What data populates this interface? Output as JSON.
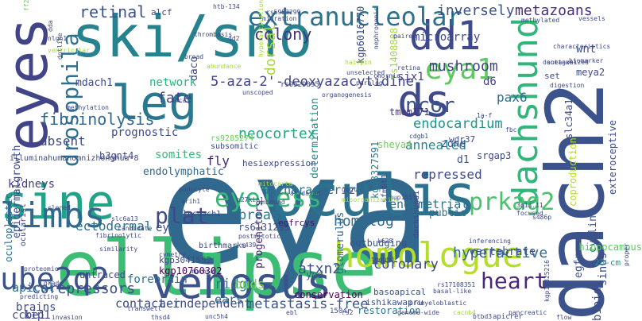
{
  "words": [
    {
      "text": "eya",
      "color": "#31688e"
    },
    {
      "text": "ellipse",
      "color": "#3dbc74"
    },
    {
      "text": "ski/sno",
      "color": "#26828e"
    },
    {
      "text": "dach2",
      "color": "#3b528b"
    },
    {
      "text": "sine",
      "color": "#20a386"
    },
    {
      "text": "oculis",
      "color": "#2c718e"
    },
    {
      "text": "venosus",
      "color": "#3b528b"
    },
    {
      "text": "eyes",
      "color": "#414487"
    },
    {
      "text": "leg",
      "color": "#2a788e"
    },
    {
      "text": "homologue",
      "color": "#b5de2b"
    },
    {
      "text": "ds",
      "color": "#3e4a89"
    },
    {
      "text": "limbs",
      "color": "#31688e"
    },
    {
      "text": "ube2q2",
      "color": "#3b528b"
    },
    {
      "text": "dachshund",
      "color": "#31b57b"
    },
    {
      "text": "dd1",
      "color": "#3e4a89"
    },
    {
      "text": "eyeless",
      "color": "#35b779"
    },
    {
      "text": "eya1",
      "color": "#5ec962"
    },
    {
      "text": "extranucleolar",
      "color": "#2c718e"
    },
    {
      "text": "5-aza-2'-deoxyazacytidine",
      "color": "#404387"
    },
    {
      "text": "ncor",
      "color": "#3b528b"
    },
    {
      "text": "endocardium",
      "color": "#21918c"
    },
    {
      "text": "prkag2",
      "color": "#4ac16d"
    },
    {
      "text": "heart",
      "color": "#482878"
    },
    {
      "text": "drosophila",
      "color": "#2d708e"
    },
    {
      "text": "mushroom",
      "color": "#414487"
    },
    {
      "text": "fibrinolysis",
      "color": "#31688e"
    },
    {
      "text": "neocortex",
      "color": "#22a884"
    },
    {
      "text": "breast",
      "color": "#2a788e"
    },
    {
      "text": "plat",
      "color": "#3e4989"
    },
    {
      "text": "homolog",
      "color": "#31688e"
    },
    {
      "text": "atxn2",
      "color": "#3b528b"
    },
    {
      "text": "metastasis-free",
      "color": "#39558c"
    },
    {
      "text": "contact-independent",
      "color": "#3e4a89"
    },
    {
      "text": "colony",
      "color": "#46337e"
    },
    {
      "text": "inversely",
      "color": "#3b528b"
    },
    {
      "text": "metazoans",
      "color": "#46307e"
    },
    {
      "text": "annealed",
      "color": "#26828e"
    },
    {
      "text": "repressed",
      "color": "#3e4989"
    },
    {
      "text": "uncharacterized",
      "color": "#2e6e8e"
    },
    {
      "text": "ectodermal",
      "color": "#2c728e"
    },
    {
      "text": "absent",
      "color": "#3e4a89"
    },
    {
      "text": "network",
      "color": "#2db27d"
    },
    {
      "text": "fate",
      "color": "#433e85"
    },
    {
      "text": "retinal",
      "color": "#3b528b"
    },
    {
      "text": "somites",
      "color": "#38b977"
    },
    {
      "text": "pax6",
      "color": "#2d708e"
    },
    {
      "text": "six1",
      "color": "#433e85"
    },
    {
      "text": "d6",
      "color": "#433e85"
    },
    {
      "text": "coronary",
      "color": "#3e4a89"
    },
    {
      "text": "hyperactive",
      "color": "#31688e"
    },
    {
      "text": "endometrial",
      "color": "#2c718e"
    },
    {
      "text": "vertebrate",
      "color": "#3b528b"
    },
    {
      "text": "corepressors",
      "color": "#3d4d8a"
    },
    {
      "text": "forebrain",
      "color": "#2d708e"
    },
    {
      "text": "apical",
      "color": "#2d708e"
    },
    {
      "text": "brains",
      "color": "#3e4a89"
    },
    {
      "text": "ccbe1",
      "color": "#3e4989"
    },
    {
      "text": "kip1",
      "color": "#404387"
    },
    {
      "text": "kidneys",
      "color": "#433e85"
    },
    {
      "text": "dorsal",
      "color": "#a5db36"
    },
    {
      "text": "microarray",
      "color": "#3e4989"
    },
    {
      "text": "prognostic",
      "color": "#3e4989"
    },
    {
      "text": "mdach1",
      "color": "#3e4a89"
    },
    {
      "text": "fly",
      "color": "#482475"
    },
    {
      "text": "daco",
      "color": "#3e4989"
    },
    {
      "text": "ridge",
      "color": "#2a788e"
    },
    {
      "text": "ears",
      "color": "#31688e"
    },
    {
      "text": "aer",
      "color": "#3b528b"
    },
    {
      "text": "buds",
      "color": "#7ad151"
    },
    {
      "text": "ey",
      "color": "#3e4989"
    },
    {
      "text": "bioid",
      "color": "#3e4989"
    },
    {
      "text": "sinus",
      "color": "#3e4989"
    },
    {
      "text": "egfr",
      "color": "#3b528b"
    },
    {
      "text": "wnt",
      "color": "#3b528b"
    },
    {
      "text": "cyclin",
      "color": "#3b528b"
    },
    {
      "text": "public",
      "color": "#2d708e"
    },
    {
      "text": "zone",
      "color": "#3b528b"
    },
    {
      "text": "d1",
      "color": "#3b528b"
    },
    {
      "text": "srgap3",
      "color": "#3e4989"
    },
    {
      "text": "sheya4",
      "color": "#6ccd5a"
    },
    {
      "text": "tmem171",
      "color": "#46327e"
    },
    {
      "text": "egfrcys",
      "color": "#471063"
    },
    {
      "text": "yod",
      "color": "#3b528b"
    },
    {
      "text": "glomerulus",
      "color": "#31688e"
    },
    {
      "text": "progenitors",
      "color": "#482575"
    },
    {
      "text": "determination",
      "color": "#21918c"
    },
    {
      "text": "conservation",
      "color": "#440154"
    },
    {
      "text": "restoration",
      "color": "#2c728e"
    },
    {
      "text": "outbudging",
      "color": "#3b528b"
    },
    {
      "text": "ishikawapru",
      "color": "#3b528b"
    },
    {
      "text": "basoapical",
      "color": "#3b528b"
    },
    {
      "text": "slc34a1",
      "color": "#3e4989"
    },
    {
      "text": "exteroceptive",
      "color": "#3e4989"
    },
    {
      "text": "coproduction",
      "color": "#b5de2b"
    },
    {
      "text": "epidermalgrowth",
      "color": "#3e4989"
    },
    {
      "text": "oculoplastic",
      "color": "#2d708e"
    },
    {
      "text": "endolymphatic",
      "color": "#31688e"
    },
    {
      "text": "kgp6016770",
      "color": "#3e4989"
    },
    {
      "text": "rs1408888",
      "color": "#a5db36"
    },
    {
      "text": "kgp8327591",
      "color": "#2a788e"
    },
    {
      "text": "kgp3041552",
      "color": "#3e4989"
    },
    {
      "text": "kgp10760302",
      "color": "#440154"
    },
    {
      "text": "rs6131295",
      "color": "#3e4989"
    },
    {
      "text": "lncdach1",
      "color": "#3e4989"
    },
    {
      "text": "b3gnt4",
      "color": "#3e4989"
    },
    {
      "text": "untraced",
      "color": "#3e4989"
    },
    {
      "text": "birthmarks",
      "color": "#3e4989"
    },
    {
      "text": "hippocampus",
      "color": "#5ec962"
    },
    {
      "text": "28-cm",
      "color": "#21918c"
    },
    {
      "text": "meya2",
      "color": "#3e4989"
    },
    {
      "text": "wdr37",
      "color": "#3e4989"
    },
    {
      "text": "sfmbt1",
      "color": "#3e4989"
    },
    {
      "text": "dachshund1",
      "color": "#3e4989"
    },
    {
      "text": "hesiexpression",
      "color": "#3e4989"
    },
    {
      "text": "rs9285274",
      "color": "#6ccd5a"
    },
    {
      "text": "alcf",
      "color": "#3e4989"
    },
    {
      "text": "ff2",
      "color": "#6ccd5a"
    },
    {
      "text": "subsomitic",
      "color": "#3e4989"
    },
    {
      "text": "illuminahumanomnizhonghua-8",
      "color": "#3e4989"
    },
    {
      "text": "ocularist",
      "color": "#3e4989"
    },
    {
      "text": "set",
      "color": "#3e4989"
    },
    {
      "text": "apicrer",
      "color": "#3e4989"
    },
    {
      "text": "1504r",
      "color": "#3e4989"
    },
    {
      "text": "rs9529895",
      "color": "#3e4989"
    },
    {
      "text": "rs5953299",
      "color": "#3e4989"
    },
    {
      "text": "migration",
      "color": "#3e4989"
    },
    {
      "text": "htb-134",
      "color": "#3e4989"
    },
    {
      "text": "thrombosis",
      "color": "#3e4989"
    },
    {
      "text": "abundance",
      "color": "#a5db36"
    },
    {
      "text": "broad",
      "color": "#3e4989"
    },
    {
      "text": "methylated",
      "color": "#3e4989"
    },
    {
      "text": "vessels",
      "color": "#3e4989"
    },
    {
      "text": "biomarker",
      "color": "#3e4989"
    },
    {
      "text": "characteristics",
      "color": "#3e4989"
    },
    {
      "text": "antagonized",
      "color": "#3e4989"
    },
    {
      "text": "digestion",
      "color": "#3e4989"
    },
    {
      "text": "hairpin",
      "color": "#a5db36"
    },
    {
      "text": "chornic",
      "color": "#3e4989"
    },
    {
      "text": "slc6a13",
      "color": "#3e4989"
    },
    {
      "text": "candidate",
      "color": "#3e4989"
    },
    {
      "text": "fibrinolytic",
      "color": "#3e4989"
    },
    {
      "text": "similarity",
      "color": "#3e4989"
    },
    {
      "text": "cymetry",
      "color": "#3e4989"
    },
    {
      "text": "mucosa",
      "color": "#3e4989"
    },
    {
      "text": "grade",
      "color": "#3e4989"
    },
    {
      "text": "transwell",
      "color": "#3e4989"
    },
    {
      "text": "invasion",
      "color": "#3e4989"
    },
    {
      "text": "thsd4",
      "color": "#3e4989"
    },
    {
      "text": "unc5h4",
      "color": "#3e4989"
    },
    {
      "text": "btbd3",
      "color": "#3e4989"
    },
    {
      "text": "promyeloblastic",
      "color": "#3e4989"
    },
    {
      "text": "basal-like",
      "color": "#3e4989"
    },
    {
      "text": "tmem60",
      "color": "#3e4989"
    },
    {
      "text": "k628",
      "color": "#3e4989"
    },
    {
      "text": "misorganization",
      "color": "#a5db36"
    },
    {
      "text": "mitocarta",
      "color": "#a5db36"
    },
    {
      "text": "unbound",
      "color": "#3e4989"
    },
    {
      "text": "podocyte",
      "color": "#3e4989"
    },
    {
      "text": "arih1",
      "color": "#3e4989"
    },
    {
      "text": "cloned",
      "color": "#3e4989"
    },
    {
      "text": "proteomic",
      "color": "#3e4989"
    },
    {
      "text": "predicting",
      "color": "#3e4989"
    },
    {
      "text": "p27kip1",
      "color": "#3e4989"
    },
    {
      "text": "validated",
      "color": "#3e4989"
    },
    {
      "text": "unselected",
      "color": "#3e4989"
    },
    {
      "text": "organogenesis",
      "color": "#3e4989"
    },
    {
      "text": "proper",
      "color": "#3e4989"
    },
    {
      "text": "inferencing",
      "color": "#3e4989"
    },
    {
      "text": "focused",
      "color": "#3e4989"
    },
    {
      "text": "methylation",
      "color": "#3e4989"
    },
    {
      "text": "dotlike",
      "color": "#3e4989"
    },
    {
      "text": "ventricular",
      "color": "#a5db36"
    },
    {
      "text": "docetaxel",
      "color": "#3e4989"
    },
    {
      "text": "kgp11325216",
      "color": "#3e4989"
    },
    {
      "text": "s486p",
      "color": "#3e4989"
    },
    {
      "text": "gugt",
      "color": "#3e4989"
    },
    {
      "text": "3q13.11",
      "color": "#3e4989"
    },
    {
      "text": "paired",
      "color": "#3e4989"
    },
    {
      "text": "nephrogenic",
      "color": "#3e4989"
    },
    {
      "text": "paralog",
      "color": "#3e4989"
    },
    {
      "text": "retina",
      "color": "#3e4989"
    },
    {
      "text": "nup155",
      "color": "#3e4989"
    },
    {
      "text": "rs17108351",
      "color": "#3e4989"
    },
    {
      "text": "postmitotic",
      "color": "#3e4989"
    },
    {
      "text": "s439",
      "color": "#3e4989"
    },
    {
      "text": "dd2",
      "color": "#3e4989"
    },
    {
      "text": "hyperactivation",
      "color": "#a5db36"
    },
    {
      "text": "unscoped",
      "color": "#3e4989"
    },
    {
      "text": "nlgn1",
      "color": "#3e4989"
    },
    {
      "text": "fbc",
      "color": "#3e4989"
    },
    {
      "text": "flow",
      "color": "#3e4989"
    },
    {
      "text": "cdgb1",
      "color": "#3e4989"
    },
    {
      "text": "dda",
      "color": "#3e4989"
    },
    {
      "text": "s4ca",
      "color": "#3e4989"
    },
    {
      "text": "1a-f",
      "color": "#3e4989"
    },
    {
      "text": "ebl",
      "color": "#3e4989"
    },
    {
      "text": "rs2",
      "color": "#3e4989"
    },
    {
      "text": "genome-wide",
      "color": "#3e4989"
    },
    {
      "text": "cacnb4",
      "color": "#a5db36"
    },
    {
      "text": "pancreatic",
      "color": "#3e4989"
    }
  ]
}
